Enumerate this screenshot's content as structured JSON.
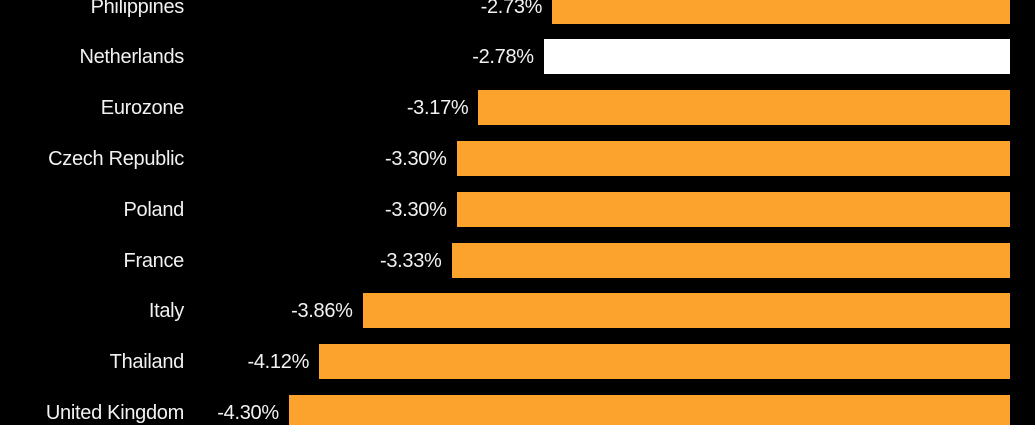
{
  "chart_data": {
    "type": "bar",
    "orientation": "horizontal",
    "title": "",
    "xlabel": "",
    "ylabel": "",
    "categories": [
      "Philippines",
      "Netherlands",
      "Eurozone",
      "Czech Republic",
      "Poland",
      "France",
      "Italy",
      "Thailand",
      "United Kingdom"
    ],
    "values": [
      -2.73,
      -2.78,
      -3.17,
      -3.3,
      -3.3,
      -3.33,
      -3.86,
      -4.12,
      -4.3
    ],
    "value_labels": [
      "-2.73%",
      "-2.78%",
      "-3.17%",
      "-3.30%",
      "-3.30%",
      "-3.33%",
      "-3.86%",
      "-4.12%",
      "-4.30%"
    ],
    "highlight_index": 1,
    "axis_range_percent": [
      -4.3,
      0
    ],
    "value_axis_zero_at_right": true,
    "grid": false,
    "legend": "none",
    "first_and_last_rows_clipped": true,
    "colors": {
      "background": "#000000",
      "bar_default": "#FBA32D",
      "bar_highlight": "#FFFFFF",
      "text": "#F2F2F2"
    }
  }
}
